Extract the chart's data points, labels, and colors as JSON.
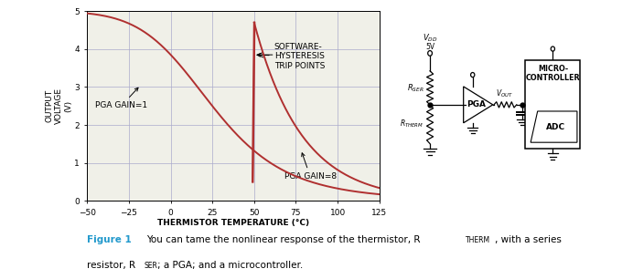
{
  "xlabel": "THERMISTOR TEMPERATURE (°C)",
  "ylabel": "OUTPUT\nVOLTAGE\n(V)",
  "xlim": [
    -50,
    125
  ],
  "ylim": [
    0,
    5
  ],
  "xticks": [
    -50,
    -25,
    0,
    25,
    50,
    75,
    100,
    125
  ],
  "yticks": [
    0,
    1,
    2,
    3,
    4,
    5
  ],
  "curve_color": "#b03030",
  "grid_color": "#aaaacc",
  "bg_color": "#f0f0e8",
  "annotation_gain1": "PGA GAIN=1",
  "annotation_gain8": "PGA GAIN=8",
  "annotation_hysteresis": "SOFTWARE-\nHYSTERESIS\nTRIP POINTS",
  "font_size_axis_label": 6.5,
  "font_size_tick": 6.5,
  "font_size_annotation": 6.5,
  "caption_figure": "Figure 1",
  "caption_body": " You can tame the nonlinear response of the thermistor, R",
  "caption_line2": "resistor, R",
  "caption_color": "#2299cc"
}
